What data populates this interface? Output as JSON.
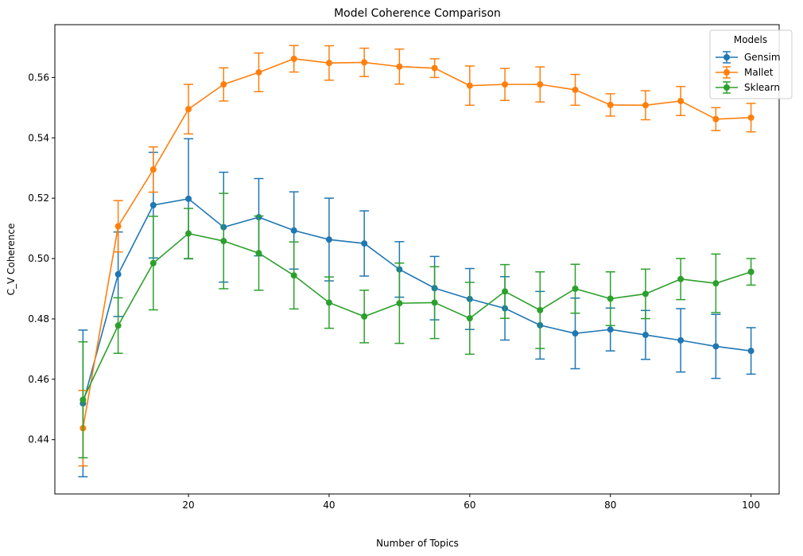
{
  "chart_data": {
    "type": "line",
    "title": "Model Coherence Comparison",
    "xlabel": "Number of Topics",
    "ylabel": "C_V Coherence",
    "xlim": [
      1,
      104
    ],
    "ylim": [
      0.422,
      0.5775
    ],
    "xticks": [
      20,
      40,
      60,
      80,
      100
    ],
    "yticks": [
      0.44,
      0.46,
      0.48,
      0.5,
      0.52,
      0.54,
      0.56
    ],
    "ytick_labels": [
      "0.44",
      "0.46",
      "0.48",
      "0.50",
      "0.52",
      "0.54",
      "0.56"
    ],
    "grid": false,
    "legend": {
      "title": "Models",
      "placement": "top-right"
    },
    "x": [
      5,
      10,
      15,
      20,
      25,
      30,
      35,
      40,
      45,
      50,
      55,
      60,
      65,
      70,
      75,
      80,
      85,
      90,
      95,
      100
    ],
    "series": [
      {
        "name": "Gensim",
        "color": "#1f77b4",
        "values": [
          0.452,
          0.4948,
          0.5177,
          0.5198,
          0.5104,
          0.5137,
          0.5093,
          0.5063,
          0.505,
          0.4964,
          0.4902,
          0.4866,
          0.4835,
          0.4779,
          0.4752,
          0.4765,
          0.4747,
          0.4729,
          0.4709,
          0.4694
        ],
        "errors": [
          0.0243,
          0.014,
          0.0175,
          0.0199,
          0.0182,
          0.0128,
          0.0128,
          0.0137,
          0.0108,
          0.0092,
          0.0105,
          0.0101,
          0.0105,
          0.0112,
          0.0117,
          0.0071,
          0.0081,
          0.0105,
          0.0106,
          0.0077
        ]
      },
      {
        "name": "Mallet",
        "color": "#ff7f0e",
        "values": [
          0.4438,
          0.5107,
          0.5295,
          0.5495,
          0.5577,
          0.5617,
          0.5662,
          0.5648,
          0.565,
          0.5636,
          0.5631,
          0.5573,
          0.5577,
          0.5577,
          0.5559,
          0.5509,
          0.5508,
          0.5522,
          0.5462,
          0.5467
        ],
        "errors": [
          0.0125,
          0.0085,
          0.0075,
          0.0082,
          0.0055,
          0.0064,
          0.0044,
          0.0057,
          0.0047,
          0.0058,
          0.0031,
          0.0065,
          0.0053,
          0.0058,
          0.0051,
          0.0037,
          0.0048,
          0.0048,
          0.0038,
          0.0047
        ]
      },
      {
        "name": "Sklearn",
        "color": "#2ca02c",
        "values": [
          0.4532,
          0.4778,
          0.4985,
          0.5083,
          0.5058,
          0.5018,
          0.4944,
          0.4854,
          0.4808,
          0.4852,
          0.4854,
          0.4802,
          0.4891,
          0.4829,
          0.49,
          0.4867,
          0.4883,
          0.4932,
          0.4918,
          0.4956
        ],
        "errors": [
          0.0192,
          0.0092,
          0.0155,
          0.0083,
          0.0158,
          0.0123,
          0.0111,
          0.0085,
          0.0087,
          0.0133,
          0.0119,
          0.0119,
          0.0089,
          0.0127,
          0.0081,
          0.0089,
          0.0082,
          0.0068,
          0.0097,
          0.0044
        ]
      }
    ]
  }
}
